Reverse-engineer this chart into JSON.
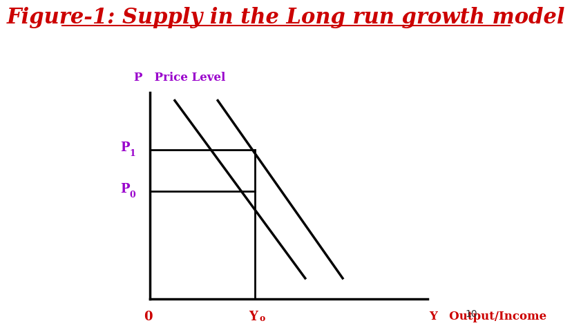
{
  "title": "Figure-1: Supply in the Long run growth model",
  "title_color": "#cc0000",
  "title_fontsize": 22,
  "ylabel": "P   Price Level",
  "ylabel_color": "#9900cc",
  "ylabel_fontsize": 12,
  "xlabel_y": "Y   Output/Income",
  "xlabel_color": "#cc0000",
  "xlabel_fontsize": 12,
  "label_0": "0",
  "p1_level": 0.72,
  "p0_level": 0.52,
  "yo_level": 0.38,
  "line_color": "#000000",
  "line_width": 2.5,
  "axis_color": "#000000",
  "bg_color": "#ffffff",
  "page_number": "10"
}
